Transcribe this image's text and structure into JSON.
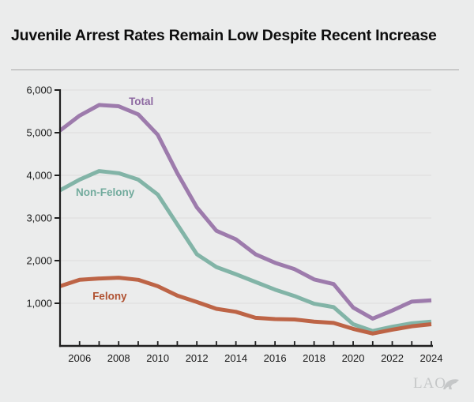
{
  "header": {
    "title": "Juvenile Arrest Rates Remain Low Despite Recent Increase"
  },
  "branding": {
    "logo_text": "LAO",
    "logo_icon": "bear-swoosh-icon"
  },
  "colors": {
    "background": "#ebecec",
    "title": "#0d0d0d",
    "divider": "#a6a6a6",
    "axis": "#1f1f1f",
    "grid": "#dcdddd",
    "tick_label": "#1a1a1a",
    "total_line": "#9d7bac",
    "total_label": "#8c67a0",
    "non_felony_line": "#82b4a7",
    "non_felony_label": "#72ab9d",
    "felony_line": "#bd6446",
    "felony_label": "#b05232",
    "logo": "#c5c7c8"
  },
  "chart_data": {
    "type": "line",
    "title": "Juvenile Arrest Rates Remain Low Despite Recent Increase",
    "xlabel": "",
    "ylabel": "",
    "x": [
      2005,
      2006,
      2007,
      2008,
      2009,
      2010,
      2011,
      2012,
      2013,
      2014,
      2015,
      2016,
      2017,
      2018,
      2019,
      2020,
      2021,
      2022,
      2023,
      2024
    ],
    "series": [
      {
        "name": "Total",
        "color": "#9d7bac",
        "label_color": "#8c67a0",
        "values": [
          5050,
          5400,
          5650,
          5620,
          5430,
          4950,
          4050,
          3250,
          2700,
          2500,
          2150,
          1950,
          1800,
          1560,
          1450,
          900,
          640,
          830,
          1040,
          1070
        ]
      },
      {
        "name": "Non-Felony",
        "color": "#82b4a7",
        "label_color": "#72ab9d",
        "values": [
          3650,
          3900,
          4100,
          4050,
          3900,
          3550,
          2850,
          2150,
          1850,
          1680,
          1500,
          1320,
          1170,
          990,
          910,
          510,
          350,
          450,
          530,
          570
        ]
      },
      {
        "name": "Felony",
        "color": "#bd6446",
        "label_color": "#b05232",
        "values": [
          1400,
          1550,
          1580,
          1600,
          1550,
          1400,
          1180,
          1030,
          870,
          800,
          660,
          630,
          620,
          570,
          540,
          400,
          290,
          380,
          460,
          510
        ]
      }
    ],
    "ylim": [
      0,
      6000
    ],
    "xlim": [
      2005,
      2024
    ],
    "y_ticks": [
      {
        "value": 1000,
        "label": "1,000"
      },
      {
        "value": 2000,
        "label": "2,000"
      },
      {
        "value": 3000,
        "label": "3,000"
      },
      {
        "value": 4000,
        "label": "4,000"
      },
      {
        "value": 5000,
        "label": "5,000"
      },
      {
        "value": 6000,
        "label": "6,000"
      }
    ],
    "x_labeled_ticks": [
      2006,
      2008,
      2010,
      2012,
      2014,
      2016,
      2018,
      2020,
      2022,
      2024
    ],
    "x_minor_ticks_every_year": true,
    "grid": "horizontal",
    "legend": "inline-labels",
    "annotations": [
      {
        "text": "Total",
        "year": 2008.52,
        "value": 5650,
        "color": "#8c67a0"
      },
      {
        "text": "Non-Felony",
        "year": 2005.81,
        "value": 3520,
        "color": "#72ab9d"
      },
      {
        "text": "Felony",
        "year": 2006.66,
        "value": 1080,
        "color": "#b05232"
      }
    ]
  }
}
